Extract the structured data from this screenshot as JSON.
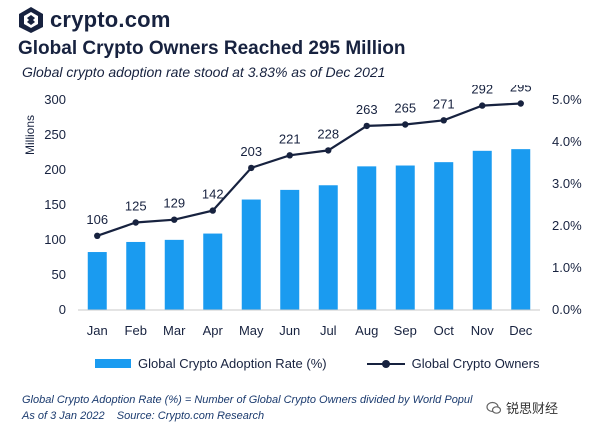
{
  "brand": {
    "name": "crypto.com"
  },
  "header": {
    "title": "Global Crypto Owners Reached 295 Million",
    "subtitle": "Global crypto adoption rate stood at 3.83% as of Dec 2021"
  },
  "legend": {
    "bar_label": "Global Crypto Adoption Rate (%)",
    "line_label": "Global Crypto Owners"
  },
  "footnote": {
    "line1": "Global Crypto Adoption Rate (%) = Number of Global Crypto Owners divided by World Popul",
    "line2_date": "As of 3 Jan 2022",
    "line2_source": "Source: Crypto.com Research"
  },
  "watermark": {
    "text": "锐思财经"
  },
  "colors": {
    "bar": "#1a9bf0",
    "line": "#17223f",
    "text": "#17223f"
  },
  "chart_data": {
    "type": "bar",
    "categories": [
      "Jan",
      "Feb",
      "Mar",
      "Apr",
      "May",
      "Jun",
      "Jul",
      "Aug",
      "Sep",
      "Oct",
      "Nov",
      "Dec"
    ],
    "y_left_label": "Millions",
    "y_left_ticks": [
      "0",
      "50",
      "100",
      "150",
      "200",
      "250",
      "300"
    ],
    "y_left_range": [
      0,
      300
    ],
    "y_right_ticks": [
      "0.0%",
      "1.0%",
      "2.0%",
      "3.0%",
      "4.0%",
      "5.0%"
    ],
    "y_right_range": [
      0,
      5
    ],
    "series": [
      {
        "name": "Global Crypto Adoption Rate (%)",
        "type": "bar",
        "axis": "right",
        "values": [
          1.38,
          1.62,
          1.67,
          1.82,
          2.63,
          2.86,
          2.97,
          3.42,
          3.44,
          3.52,
          3.79,
          3.83
        ]
      },
      {
        "name": "Global Crypto Owners",
        "type": "line",
        "axis": "left",
        "values": [
          106,
          125,
          129,
          142,
          203,
          221,
          228,
          263,
          265,
          271,
          292,
          295
        ],
        "labels": [
          "106",
          "125",
          "129",
          "142",
          "203",
          "221",
          "228",
          "263",
          "265",
          "271",
          "292",
          "295"
        ]
      }
    ],
    "grid": false,
    "legend_position": "bottom"
  }
}
